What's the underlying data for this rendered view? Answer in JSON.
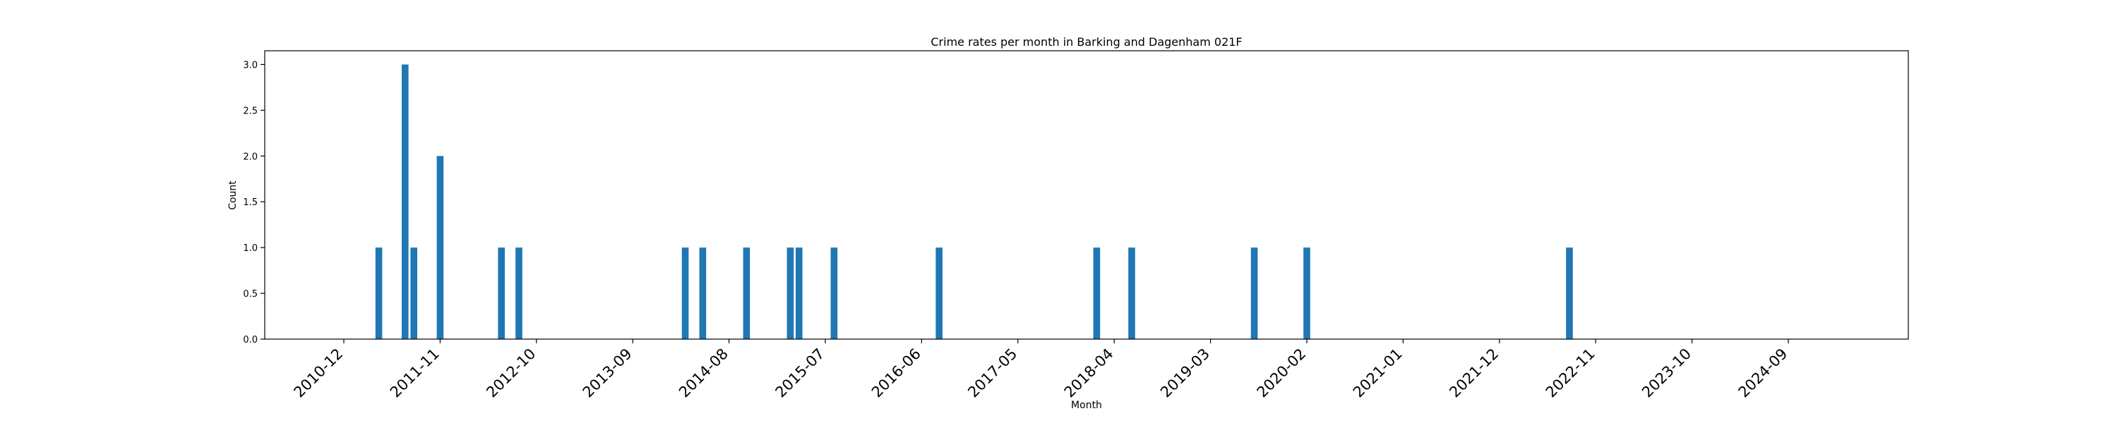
{
  "chart_data": {
    "type": "bar",
    "title": "Crime rates per month in Barking and Dagenham 021F",
    "xlabel": "Month",
    "ylabel": "Count",
    "ylim": [
      0,
      3.15
    ],
    "y_ticks": [
      "0.0",
      "0.5",
      "1.0",
      "1.5",
      "2.0",
      "2.5",
      "3.0"
    ],
    "x_ticks": [
      "2010-12",
      "2011-11",
      "2012-10",
      "2013-09",
      "2014-08",
      "2015-07",
      "2016-06",
      "2017-05",
      "2018-04",
      "2019-03",
      "2020-02",
      "2021-01",
      "2021-12",
      "2022-11",
      "2023-10",
      "2024-09"
    ],
    "x": [
      "2011-04",
      "2011-07",
      "2011-08",
      "2011-11",
      "2012-06",
      "2012-08",
      "2014-03",
      "2014-05",
      "2014-10",
      "2015-03",
      "2015-04",
      "2015-08",
      "2016-08",
      "2018-02",
      "2018-06",
      "2019-08",
      "2020-02",
      "2022-08"
    ],
    "values": [
      1,
      3,
      1,
      2,
      1,
      1,
      1,
      1,
      1,
      1,
      1,
      1,
      1,
      1,
      1,
      1,
      1,
      1
    ],
    "bar_color": "#1f77b4",
    "grid": false
  }
}
